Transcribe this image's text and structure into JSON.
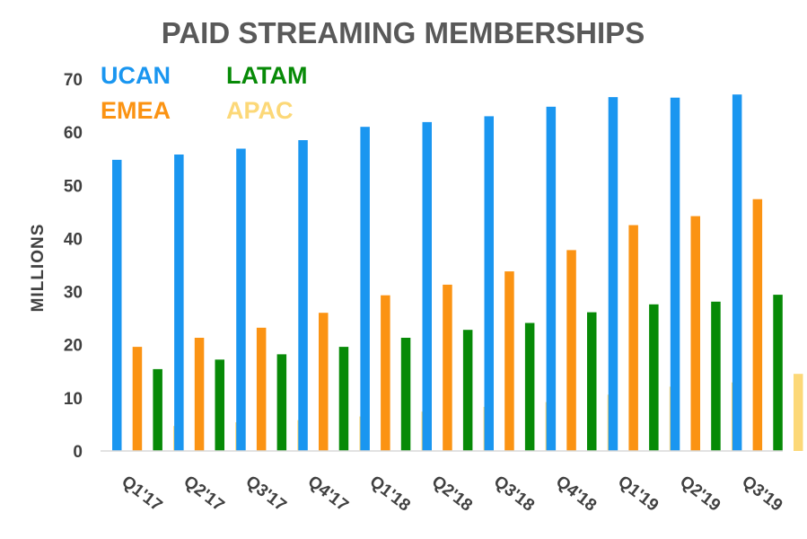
{
  "chart_data": {
    "type": "bar",
    "title": "PAID STREAMING MEMBERSHIPS",
    "ylabel": "MILLIONS",
    "xlabel": "",
    "categories": [
      "Q1'17",
      "Q2'17",
      "Q3'17",
      "Q4'17",
      "Q1'18",
      "Q2'18",
      "Q3'18",
      "Q4'18",
      "Q1'19",
      "Q2'19",
      "Q3'19"
    ],
    "ylim": [
      0,
      70
    ],
    "yticks": [
      0,
      10,
      20,
      30,
      40,
      50,
      60,
      70
    ],
    "grid": false,
    "legend_position": "top-left",
    "series": [
      {
        "name": "UCAN",
        "color": "#1a96f0",
        "values": [
          54.8,
          55.8,
          56.9,
          58.5,
          61.0,
          61.9,
          63.0,
          64.8,
          66.6,
          66.5,
          67.1
        ]
      },
      {
        "name": "EMEA",
        "color": "#fb9313",
        "values": [
          19.6,
          21.3,
          23.2,
          26.0,
          29.3,
          31.3,
          33.8,
          37.8,
          42.5,
          44.2,
          47.4
        ]
      },
      {
        "name": "LATAM",
        "color": "#078a07",
        "values": [
          15.4,
          17.2,
          18.2,
          19.6,
          21.3,
          22.8,
          24.1,
          26.1,
          27.6,
          28.1,
          29.4
        ]
      },
      {
        "name": "APAC",
        "color": "#fcd878",
        "values": [
          4.7,
          5.4,
          5.8,
          6.5,
          7.4,
          8.3,
          9.2,
          10.6,
          12.1,
          12.9,
          14.5
        ]
      }
    ]
  }
}
